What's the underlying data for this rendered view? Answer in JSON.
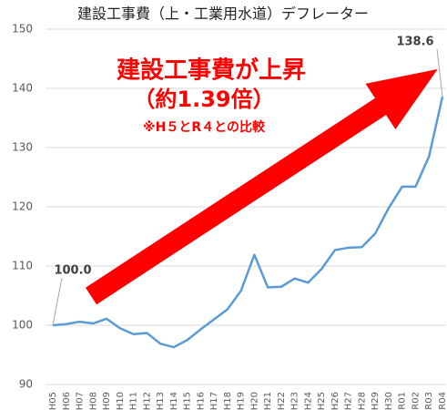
{
  "chart_data": {
    "type": "line",
    "title": "建設工事費（上・工業用水道）デフレーター",
    "annotations": [
      "建設工事費が上昇",
      "（約1.39倍）",
      "※H５とR４との比較"
    ],
    "categories": [
      "H05",
      "H06",
      "H07",
      "H08",
      "H09",
      "H10",
      "H11",
      "H12",
      "H13",
      "H14",
      "H15",
      "H16",
      "H17",
      "H18",
      "H19",
      "H20",
      "H21",
      "H22",
      "H23",
      "H24",
      "H25",
      "H26",
      "H27",
      "H28",
      "H29",
      "H30",
      "R01",
      "R02",
      "R03",
      "R04"
    ],
    "series": [
      {
        "name": "建設工事費（上・工業用水道）デフレーター",
        "color": "#5b9bd5",
        "values": [
          100.0,
          100.2,
          100.6,
          100.3,
          101.1,
          99.5,
          98.5,
          98.7,
          96.9,
          96.3,
          97.5,
          99.3,
          101.0,
          102.7,
          105.8,
          111.9,
          106.4,
          106.5,
          107.9,
          107.2,
          109.5,
          112.7,
          113.1,
          113.2,
          115.5,
          119.8,
          123.4,
          123.4,
          128.5,
          138.6
        ],
        "value_labels": [
          "100.0",
          null,
          null,
          null,
          null,
          null,
          null,
          null,
          null,
          null,
          null,
          null,
          null,
          null,
          null,
          null,
          null,
          null,
          null,
          null,
          null,
          null,
          null,
          null,
          null,
          null,
          null,
          null,
          null,
          "138.6"
        ]
      }
    ],
    "ylim": [
      90,
      150
    ],
    "yticks": [
      90,
      100,
      110,
      120,
      130,
      140,
      150
    ],
    "grid": true
  }
}
